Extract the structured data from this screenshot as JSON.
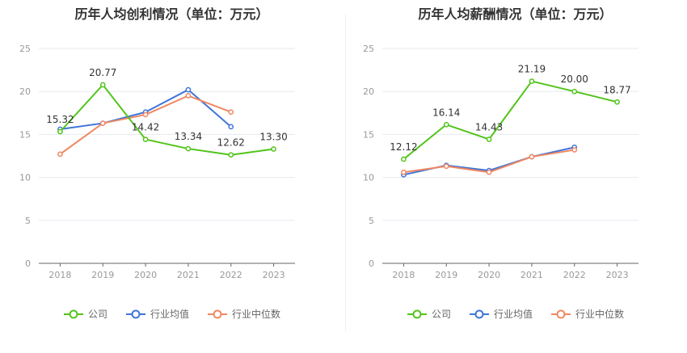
{
  "chart_data": [
    {
      "type": "line",
      "title": "历年人均创利情况（单位：万元）",
      "categories": [
        "2018",
        "2019",
        "2020",
        "2021",
        "2022",
        "2023"
      ],
      "ylim": [
        0,
        25
      ],
      "yticks": [
        0,
        5,
        10,
        15,
        20,
        25
      ],
      "grid": true,
      "legend_position": "bottom",
      "series": [
        {
          "name": "公司",
          "color": "#52c41a",
          "values": [
            15.32,
            20.77,
            14.42,
            13.34,
            12.62,
            13.3
          ],
          "labels": [
            "15.32",
            "20.77",
            "14.42",
            "13.34",
            "12.62",
            "13.30"
          ]
        },
        {
          "name": "行业均值",
          "color": "#3f75d8",
          "values": [
            15.6,
            16.3,
            17.6,
            20.2,
            15.9,
            null
          ]
        },
        {
          "name": "行业中位数",
          "color": "#f08762",
          "values": [
            12.7,
            16.3,
            17.3,
            19.5,
            17.6,
            null
          ]
        }
      ]
    },
    {
      "type": "line",
      "title": "历年人均薪酬情况（单位：万元）",
      "categories": [
        "2018",
        "2019",
        "2020",
        "2021",
        "2022",
        "2023"
      ],
      "ylim": [
        0,
        25
      ],
      "yticks": [
        0,
        5,
        10,
        15,
        20,
        25
      ],
      "grid": true,
      "legend_position": "bottom",
      "series": [
        {
          "name": "公司",
          "color": "#52c41a",
          "values": [
            12.12,
            16.14,
            14.43,
            21.19,
            20.0,
            18.77
          ],
          "labels": [
            "12.12",
            "16.14",
            "14.43",
            "21.19",
            "20.00",
            "18.77"
          ]
        },
        {
          "name": "行业均值",
          "color": "#3f75d8",
          "values": [
            10.3,
            11.4,
            10.8,
            12.4,
            13.5,
            null
          ]
        },
        {
          "name": "行业中位数",
          "color": "#f08762",
          "values": [
            10.6,
            11.3,
            10.6,
            12.4,
            13.2,
            null
          ]
        }
      ]
    }
  ]
}
